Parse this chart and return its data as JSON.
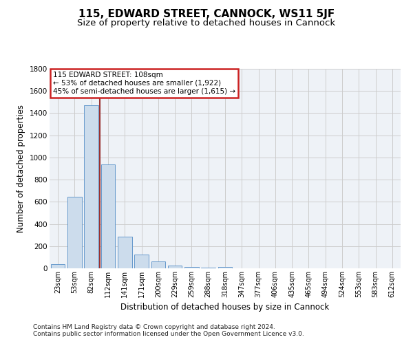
{
  "title": "115, EDWARD STREET, CANNOCK, WS11 5JF",
  "subtitle": "Size of property relative to detached houses in Cannock",
  "xlabel": "Distribution of detached houses by size in Cannock",
  "ylabel": "Number of detached properties",
  "bin_labels": [
    "23sqm",
    "53sqm",
    "82sqm",
    "112sqm",
    "141sqm",
    "171sqm",
    "200sqm",
    "229sqm",
    "259sqm",
    "288sqm",
    "318sqm",
    "347sqm",
    "377sqm",
    "406sqm",
    "435sqm",
    "465sqm",
    "494sqm",
    "524sqm",
    "553sqm",
    "583sqm",
    "612sqm"
  ],
  "bar_values": [
    40,
    645,
    1470,
    940,
    285,
    125,
    65,
    25,
    15,
    5,
    10,
    0,
    0,
    0,
    0,
    0,
    0,
    0,
    0,
    0,
    0
  ],
  "bar_color": "#ccdcec",
  "bar_edgecolor": "#6699cc",
  "vline_x": 2.5,
  "vline_color": "#993333",
  "annotation_line1": "115 EDWARD STREET: 108sqm",
  "annotation_line2": "← 53% of detached houses are smaller (1,922)",
  "annotation_line3": "45% of semi-detached houses are larger (1,615) →",
  "annotation_box_color": "#cc2222",
  "ylim": [
    0,
    1800
  ],
  "yticks": [
    0,
    200,
    400,
    600,
    800,
    1000,
    1200,
    1400,
    1600,
    1800
  ],
  "grid_color": "#cccccc",
  "bg_color": "#eef2f7",
  "footnote": "Contains HM Land Registry data © Crown copyright and database right 2024.\nContains public sector information licensed under the Open Government Licence v3.0.",
  "title_fontsize": 11,
  "subtitle_fontsize": 9.5,
  "xlabel_fontsize": 8.5,
  "ylabel_fontsize": 8.5,
  "tick_fontsize": 7,
  "footnote_fontsize": 6.5
}
